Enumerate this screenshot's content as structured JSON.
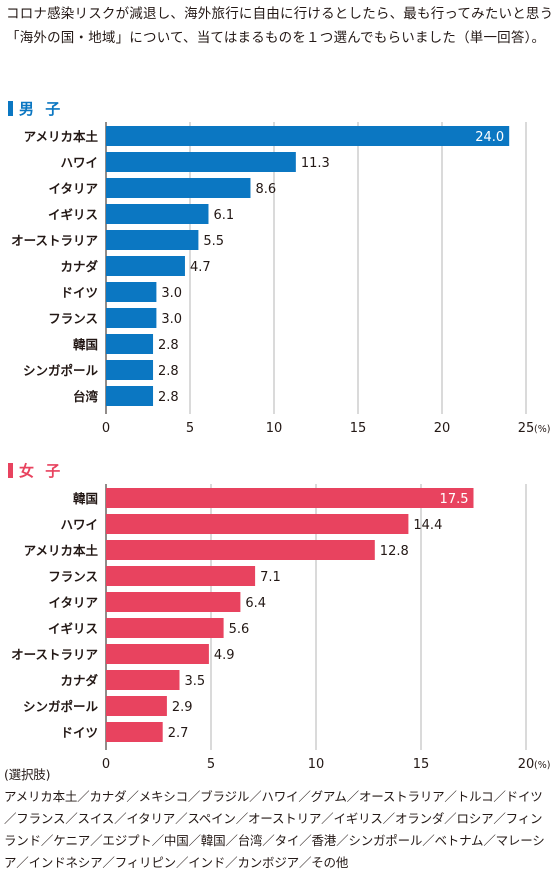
{
  "question": "コロナ感染リスクが減退し、海外旅行に自由に行けるとしたら、最も行ってみたいと思う「海外の国・地域」について、当てはまるものを１つ選んでもらいました（単一回答）。",
  "options_label": "(選択肢)",
  "options_text": "アメリカ本土／カナダ／メキシコ／ブラジル／ハワイ／グアム／オーストラリア／トルコ／ドイツ／フランス／スイス／イタリア／スペイン／オーストリア／イギリス／オランダ／ロシア／フィンランド／ケニア／エジプト／中国／韓国／台湾／タイ／香港／シンガポール／ベトナム／マレーシア／インドネシア／フィリピン／インド／カンボジア／その他",
  "colors": {
    "male": "#0b77c2",
    "female": "#e8435f",
    "grid": "#b5b5b5",
    "axis": "#231815"
  },
  "chart_data": [
    {
      "type": "bar",
      "orientation": "horizontal",
      "title": "男 子",
      "categories": [
        "アメリカ本土",
        "ハワイ",
        "イタリア",
        "イギリス",
        "オーストラリア",
        "カナダ",
        "ドイツ",
        "フランス",
        "韓国",
        "シンガポール",
        "台湾"
      ],
      "values": [
        24.0,
        11.3,
        8.6,
        6.1,
        5.5,
        4.7,
        3.0,
        3.0,
        2.8,
        2.8,
        2.8
      ],
      "xlim": [
        0,
        25
      ],
      "xticks": [
        0,
        5,
        10,
        15,
        20,
        25
      ],
      "unit": "(%)",
      "grid": true,
      "color": "#0b77c2"
    },
    {
      "type": "bar",
      "orientation": "horizontal",
      "title": "女 子",
      "categories": [
        "韓国",
        "ハワイ",
        "アメリカ本土",
        "フランス",
        "イタリア",
        "イギリス",
        "オーストラリア",
        "カナダ",
        "シンガポール",
        "ドイツ"
      ],
      "values": [
        17.5,
        14.4,
        12.8,
        7.1,
        6.4,
        5.6,
        4.9,
        3.5,
        2.9,
        2.7
      ],
      "xlim": [
        0,
        20
      ],
      "xticks": [
        0,
        5,
        10,
        15,
        20
      ],
      "unit": "(%)",
      "grid": true,
      "color": "#e8435f"
    }
  ]
}
